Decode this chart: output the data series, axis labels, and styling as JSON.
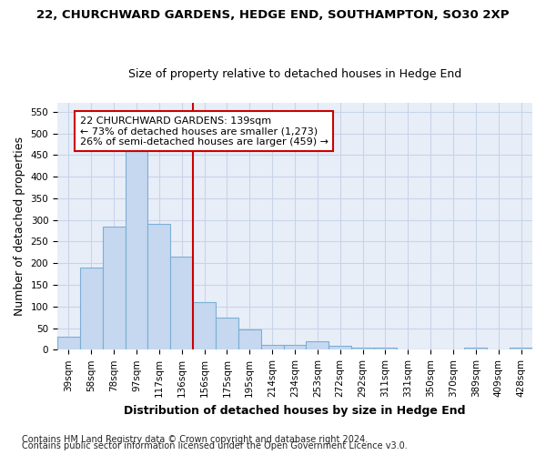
{
  "title1": "22, CHURCHWARD GARDENS, HEDGE END, SOUTHAMPTON, SO30 2XP",
  "title2": "Size of property relative to detached houses in Hedge End",
  "xlabel": "Distribution of detached houses by size in Hedge End",
  "ylabel": "Number of detached properties",
  "bar_labels": [
    "39sqm",
    "58sqm",
    "78sqm",
    "97sqm",
    "117sqm",
    "136sqm",
    "156sqm",
    "175sqm",
    "195sqm",
    "214sqm",
    "234sqm",
    "253sqm",
    "272sqm",
    "292sqm",
    "311sqm",
    "331sqm",
    "350sqm",
    "370sqm",
    "389sqm",
    "409sqm",
    "428sqm"
  ],
  "bar_values": [
    30,
    190,
    285,
    460,
    290,
    215,
    110,
    75,
    47,
    12,
    12,
    20,
    10,
    5,
    5,
    0,
    0,
    0,
    5,
    0,
    5
  ],
  "bar_color": "#c5d8f0",
  "bar_edge_color": "#7bafd4",
  "vline_color": "#cc0000",
  "annotation_text": "22 CHURCHWARD GARDENS: 139sqm\n← 73% of detached houses are smaller (1,273)\n26% of semi-detached houses are larger (459) →",
  "annotation_box_color": "#ffffff",
  "annotation_box_edge": "#cc0000",
  "ylim": [
    0,
    570
  ],
  "yticks": [
    0,
    50,
    100,
    150,
    200,
    250,
    300,
    350,
    400,
    450,
    500,
    550
  ],
  "footer1": "Contains HM Land Registry data © Crown copyright and database right 2024.",
  "footer2": "Contains public sector information licensed under the Open Government Licence v3.0.",
  "bg_color": "#ffffff",
  "plot_bg_color": "#e8eef8",
  "grid_color": "#c8d4e8",
  "title1_fontsize": 9.5,
  "title2_fontsize": 9,
  "axis_label_fontsize": 9,
  "tick_fontsize": 7.5,
  "footer_fontsize": 7,
  "annotation_fontsize": 8
}
